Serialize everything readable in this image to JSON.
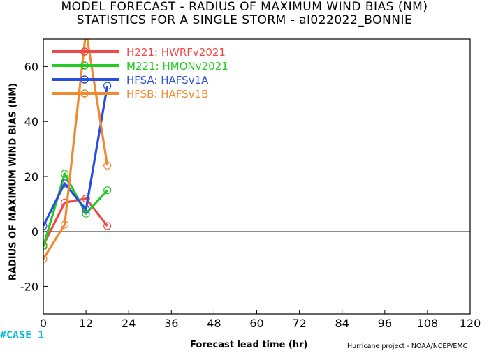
{
  "chart_data": {
    "type": "line",
    "title": "MODEL FORECAST - RADIUS OF MAXIMUM WIND BIAS (NM)",
    "subtitle": "STATISTICS FOR A SINGLE STORM - al022022_BONNIE",
    "xlabel": "Forecast lead time (hr)",
    "ylabel": "RADIUS OF MAXIMUM WIND BIAS (NM)",
    "xlim": [
      0,
      120
    ],
    "ylim": [
      -30,
      70
    ],
    "xticks": [
      0,
      12,
      24,
      36,
      48,
      60,
      72,
      84,
      96,
      108,
      120
    ],
    "yticks": [
      -20,
      0,
      20,
      40,
      60
    ],
    "grid": false,
    "legend_position": "top-left",
    "series": [
      {
        "name": "H221: HWRFv2021",
        "color": "#f04848",
        "x": [
          0,
          6,
          12,
          18
        ],
        "y": [
          -5,
          10.5,
          12,
          2
        ]
      },
      {
        "name": "M221: HMONv2021",
        "color": "#22cc22",
        "x": [
          0,
          6,
          12,
          18
        ],
        "y": [
          -5.5,
          21,
          6.5,
          15
        ]
      },
      {
        "name": "HFSA: HAFSv1A",
        "color": "#2a4fe0",
        "x": [
          0,
          6,
          12,
          18
        ],
        "y": [
          2,
          17.5,
          8,
          53
        ]
      },
      {
        "name": "HFSB: HAFSv1B",
        "color": "#f08a30",
        "x": [
          0,
          6,
          12,
          18
        ],
        "y": [
          -10,
          2.5,
          73,
          24
        ]
      }
    ]
  },
  "case_label": "#CASE  1",
  "credit": "Hurricane project - NOAA/NCEP/EMC"
}
